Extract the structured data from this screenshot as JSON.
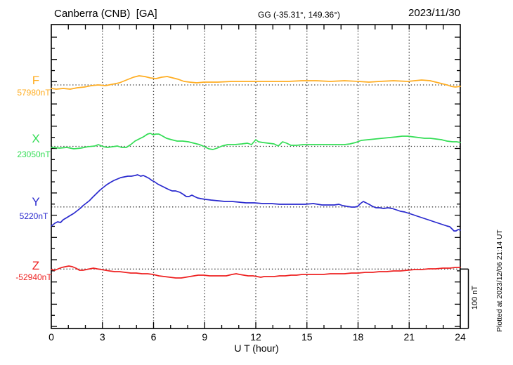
{
  "header": {
    "station_title": "Canberra (CNB)  [GA]",
    "coordinates": "GG (-35.31°, 149.36°)",
    "date": "2023/11/30"
  },
  "right_side": {
    "plotted_note": "Plotted at 2023/12/06 21:14 UT"
  },
  "chart_data": {
    "type": "line",
    "x_axis": {
      "label": "U T (hour)",
      "range": [
        0,
        24
      ],
      "ticks": [
        0,
        3,
        6,
        9,
        12,
        15,
        18,
        21,
        24
      ],
      "minor_tick_step_hours": 1,
      "grid": "dotted vertical lines at each 3-hour tick"
    },
    "y_axis": {
      "grid": "dotted horizontal baseline per component",
      "units": "nT",
      "values_are": "offset in nT from each component baseline"
    },
    "scale_bar": {
      "label": "100 nT",
      "nT": 100
    },
    "series": [
      {
        "name": "F",
        "baseline_label": "57980nT",
        "baseline_nT": 57980,
        "color": "#FFAD21",
        "points": [
          [
            0,
            -5.9
          ],
          [
            0.29,
            -7.1
          ],
          [
            0.7,
            -5.9
          ],
          [
            1.11,
            -7.1
          ],
          [
            1.53,
            -4.7
          ],
          [
            1.94,
            -3.5
          ],
          [
            2.35,
            -1.2
          ],
          [
            2.76,
            0
          ],
          [
            3.18,
            -1.2
          ],
          [
            3.59,
            1.2
          ],
          [
            4,
            3.5
          ],
          [
            4.41,
            8.2
          ],
          [
            4.82,
            12.9
          ],
          [
            5.15,
            15.3
          ],
          [
            5.48,
            14.1
          ],
          [
            5.81,
            11.8
          ],
          [
            6.14,
            10.6
          ],
          [
            6.47,
            12.9
          ],
          [
            6.8,
            14.1
          ],
          [
            7.13,
            11.8
          ],
          [
            7.46,
            9.4
          ],
          [
            7.79,
            5.9
          ],
          [
            8.12,
            4.7
          ],
          [
            8.54,
            3.5
          ],
          [
            8.95,
            4.7
          ],
          [
            9.77,
            4.7
          ],
          [
            10.6,
            5.9
          ],
          [
            11.42,
            5.9
          ],
          [
            12.25,
            5.9
          ],
          [
            13.07,
            5.9
          ],
          [
            13.9,
            5.9
          ],
          [
            14.72,
            7.1
          ],
          [
            15.55,
            7.1
          ],
          [
            16.37,
            5.9
          ],
          [
            17.2,
            7.1
          ],
          [
            18.02,
            5.9
          ],
          [
            18.64,
            4.7
          ],
          [
            19.26,
            5.9
          ],
          [
            20.08,
            7.1
          ],
          [
            20.91,
            5.9
          ],
          [
            21.73,
            8.2
          ],
          [
            22.23,
            7.1
          ],
          [
            22.56,
            4.7
          ],
          [
            22.89,
            2.4
          ],
          [
            23.22,
            0
          ],
          [
            23.46,
            -2.4
          ],
          [
            23.71,
            -3.5
          ],
          [
            24,
            -2.4
          ]
        ]
      },
      {
        "name": "X",
        "baseline_label": "23050nT",
        "baseline_nT": 23050,
        "color": "#33DD55",
        "points": [
          [
            0,
            -1.8
          ],
          [
            0.49,
            -2.9
          ],
          [
            0.91,
            -1.8
          ],
          [
            1.32,
            -4.1
          ],
          [
            1.73,
            -2.9
          ],
          [
            2.14,
            -0.6
          ],
          [
            2.56,
            0.6
          ],
          [
            2.76,
            2.9
          ],
          [
            3.05,
            -0.6
          ],
          [
            3.3,
            -1.8
          ],
          [
            3.59,
            -0.6
          ],
          [
            3.88,
            0.6
          ],
          [
            4.12,
            -1.8
          ],
          [
            4.41,
            -1.8
          ],
          [
            4.66,
            2.9
          ],
          [
            4.91,
            8.8
          ],
          [
            5.15,
            12.4
          ],
          [
            5.4,
            15.9
          ],
          [
            5.65,
            20.6
          ],
          [
            5.81,
            21.8
          ],
          [
            5.98,
            19.4
          ],
          [
            6.14,
            20.6
          ],
          [
            6.31,
            20.6
          ],
          [
            6.47,
            18.2
          ],
          [
            6.76,
            13.5
          ],
          [
            7.05,
            11.2
          ],
          [
            7.38,
            8.8
          ],
          [
            7.71,
            8.8
          ],
          [
            8.04,
            7.6
          ],
          [
            8.37,
            5.3
          ],
          [
            8.7,
            2.9
          ],
          [
            8.99,
            -0.6
          ],
          [
            9.24,
            -4.1
          ],
          [
            9.48,
            -5.3
          ],
          [
            9.73,
            -2.9
          ],
          [
            10.02,
            0.6
          ],
          [
            10.35,
            2.9
          ],
          [
            10.76,
            2.9
          ],
          [
            11.18,
            4.1
          ],
          [
            11.51,
            5.3
          ],
          [
            11.75,
            2.9
          ],
          [
            12,
            11.2
          ],
          [
            12.16,
            7.6
          ],
          [
            12.41,
            6.5
          ],
          [
            12.74,
            5.3
          ],
          [
            13.07,
            4.1
          ],
          [
            13.32,
            0.6
          ],
          [
            13.57,
            7.6
          ],
          [
            13.81,
            5.3
          ],
          [
            14.06,
            1.8
          ],
          [
            14.39,
            1.8
          ],
          [
            14.8,
            2.9
          ],
          [
            15.3,
            2.9
          ],
          [
            15.79,
            2.9
          ],
          [
            16.29,
            2.9
          ],
          [
            16.78,
            2.9
          ],
          [
            17.2,
            2.9
          ],
          [
            17.53,
            4.1
          ],
          [
            17.86,
            6.5
          ],
          [
            18.19,
            10
          ],
          [
            18.6,
            11.2
          ],
          [
            19.01,
            12.4
          ],
          [
            19.42,
            13.5
          ],
          [
            19.84,
            14.7
          ],
          [
            20.25,
            15.9
          ],
          [
            20.58,
            17.1
          ],
          [
            20.91,
            17.1
          ],
          [
            21.24,
            15.9
          ],
          [
            21.57,
            14.7
          ],
          [
            21.9,
            13.5
          ],
          [
            22.23,
            13.5
          ],
          [
            22.56,
            12.4
          ],
          [
            22.89,
            11.2
          ],
          [
            23.22,
            8.8
          ],
          [
            23.55,
            7.6
          ],
          [
            23.79,
            7.6
          ],
          [
            24,
            6.5
          ]
        ]
      },
      {
        "name": "Y",
        "baseline_label": "5220nT",
        "baseline_nT": 5220,
        "color": "#2929CE",
        "points": [
          [
            0,
            -32
          ],
          [
            0.21,
            -27.3
          ],
          [
            0.37,
            -24.9
          ],
          [
            0.54,
            -26.1
          ],
          [
            0.7,
            -21.4
          ],
          [
            0.91,
            -17.9
          ],
          [
            1.11,
            -14.4
          ],
          [
            1.32,
            -10.8
          ],
          [
            1.53,
            -6.1
          ],
          [
            1.69,
            -2.6
          ],
          [
            1.86,
            2.1
          ],
          [
            2.02,
            5.6
          ],
          [
            2.23,
            10.4
          ],
          [
            2.43,
            16.2
          ],
          [
            2.64,
            22.1
          ],
          [
            2.85,
            28
          ],
          [
            3.05,
            32.7
          ],
          [
            3.26,
            37.4
          ],
          [
            3.46,
            40.9
          ],
          [
            3.67,
            44.4
          ],
          [
            3.88,
            46.8
          ],
          [
            4.08,
            49.2
          ],
          [
            4.29,
            50.3
          ],
          [
            4.49,
            51.5
          ],
          [
            4.7,
            51.5
          ],
          [
            4.91,
            52.7
          ],
          [
            5.07,
            53.9
          ],
          [
            5.24,
            51.5
          ],
          [
            5.4,
            52.7
          ],
          [
            5.57,
            50.3
          ],
          [
            5.73,
            48
          ],
          [
            5.9,
            44.4
          ],
          [
            6.06,
            42.1
          ],
          [
            6.23,
            38.6
          ],
          [
            6.39,
            36.2
          ],
          [
            6.56,
            33.9
          ],
          [
            6.72,
            31.5
          ],
          [
            6.89,
            29.2
          ],
          [
            7.09,
            26.8
          ],
          [
            7.3,
            26.8
          ],
          [
            7.55,
            24.5
          ],
          [
            7.75,
            20.9
          ],
          [
            7.92,
            17.4
          ],
          [
            8.08,
            17.4
          ],
          [
            8.25,
            19.8
          ],
          [
            8.41,
            17.4
          ],
          [
            8.58,
            15.1
          ],
          [
            8.78,
            13.9
          ],
          [
            9.03,
            12.7
          ],
          [
            9.36,
            11.5
          ],
          [
            9.77,
            10.4
          ],
          [
            10.19,
            9.2
          ],
          [
            10.6,
            9.2
          ],
          [
            11.01,
            8
          ],
          [
            11.42,
            6.8
          ],
          [
            11.92,
            6.8
          ],
          [
            12.41,
            5.6
          ],
          [
            12.91,
            5.6
          ],
          [
            13.4,
            4.5
          ],
          [
            13.9,
            4.5
          ],
          [
            14.39,
            4.5
          ],
          [
            14.89,
            4.5
          ],
          [
            15.38,
            5.6
          ],
          [
            15.63,
            4.5
          ],
          [
            15.88,
            3.3
          ],
          [
            16.12,
            3.3
          ],
          [
            16.37,
            3.3
          ],
          [
            16.62,
            3.3
          ],
          [
            16.87,
            4.5
          ],
          [
            17.11,
            2.1
          ],
          [
            17.36,
            0.9
          ],
          [
            17.61,
            -0.2
          ],
          [
            17.81,
            -0.2
          ],
          [
            17.98,
            0.9
          ],
          [
            18.14,
            5.6
          ],
          [
            18.31,
            9.2
          ],
          [
            18.47,
            6.8
          ],
          [
            18.64,
            4.5
          ],
          [
            18.85,
            0.9
          ],
          [
            19.05,
            -1.4
          ],
          [
            19.26,
            -1.4
          ],
          [
            19.51,
            -2.6
          ],
          [
            19.75,
            -1.4
          ],
          [
            20,
            -2.6
          ],
          [
            20.25,
            -4.9
          ],
          [
            20.49,
            -7.3
          ],
          [
            20.74,
            -8.5
          ],
          [
            20.99,
            -10.8
          ],
          [
            21.24,
            -13.2
          ],
          [
            21.48,
            -15.5
          ],
          [
            21.73,
            -17.9
          ],
          [
            21.98,
            -20.2
          ],
          [
            22.23,
            -22.6
          ],
          [
            22.47,
            -24.9
          ],
          [
            22.72,
            -27.3
          ],
          [
            22.97,
            -29.6
          ],
          [
            23.22,
            -32
          ],
          [
            23.38,
            -33.2
          ],
          [
            23.51,
            -36.7
          ],
          [
            23.63,
            -40.2
          ],
          [
            23.75,
            -40.2
          ],
          [
            23.88,
            -37.9
          ],
          [
            24,
            -39
          ]
        ]
      },
      {
        "name": "Z",
        "baseline_label": "-52940nT",
        "baseline_nT": -52940,
        "color": "#EE2222",
        "points": [
          [
            0,
            -0.8
          ],
          [
            0.21,
            -2
          ],
          [
            0.41,
            0.4
          ],
          [
            0.62,
            2.7
          ],
          [
            0.82,
            3.9
          ],
          [
            1.03,
            5.1
          ],
          [
            1.24,
            3.9
          ],
          [
            1.44,
            1.5
          ],
          [
            1.65,
            -2
          ],
          [
            1.86,
            -2
          ],
          [
            2.06,
            -0.8
          ],
          [
            2.27,
            0.4
          ],
          [
            2.47,
            1.5
          ],
          [
            2.68,
            0.4
          ],
          [
            2.93,
            -0.8
          ],
          [
            3.18,
            -2
          ],
          [
            3.42,
            -3.2
          ],
          [
            3.71,
            -4.4
          ],
          [
            4,
            -4.4
          ],
          [
            4.33,
            -5.5
          ],
          [
            4.66,
            -6.7
          ],
          [
            4.99,
            -6.7
          ],
          [
            5.32,
            -7.9
          ],
          [
            5.65,
            -7.9
          ],
          [
            5.98,
            -9.1
          ],
          [
            6.31,
            -11.4
          ],
          [
            6.64,
            -12.6
          ],
          [
            6.97,
            -13.8
          ],
          [
            7.3,
            -14.9
          ],
          [
            7.63,
            -14.9
          ],
          [
            7.88,
            -13.8
          ],
          [
            8.12,
            -12.6
          ],
          [
            8.37,
            -11.4
          ],
          [
            8.62,
            -10.2
          ],
          [
            8.95,
            -10.2
          ],
          [
            9.28,
            -11.4
          ],
          [
            9.61,
            -11.4
          ],
          [
            9.94,
            -11.4
          ],
          [
            10.27,
            -11.4
          ],
          [
            10.6,
            -9.1
          ],
          [
            10.85,
            -7.9
          ],
          [
            11.05,
            -9.1
          ],
          [
            11.3,
            -10.2
          ],
          [
            11.55,
            -11.4
          ],
          [
            11.84,
            -11.4
          ],
          [
            12.08,
            -12.6
          ],
          [
            12.29,
            -13.8
          ],
          [
            12.49,
            -12.6
          ],
          [
            12.74,
            -12.6
          ],
          [
            13.07,
            -12.6
          ],
          [
            13.4,
            -11.4
          ],
          [
            13.73,
            -11.4
          ],
          [
            14.06,
            -10.2
          ],
          [
            14.39,
            -10.2
          ],
          [
            14.72,
            -9.1
          ],
          [
            15.13,
            -9.1
          ],
          [
            15.55,
            -9.1
          ],
          [
            15.96,
            -9.1
          ],
          [
            16.37,
            -7.9
          ],
          [
            16.78,
            -7.9
          ],
          [
            17.2,
            -7.9
          ],
          [
            17.61,
            -6.7
          ],
          [
            18.02,
            -6.7
          ],
          [
            18.43,
            -5.5
          ],
          [
            18.85,
            -5.5
          ],
          [
            19.26,
            -4.4
          ],
          [
            19.67,
            -4.4
          ],
          [
            20.08,
            -3.2
          ],
          [
            20.49,
            -3.2
          ],
          [
            20.91,
            -2
          ],
          [
            21.32,
            -0.8
          ],
          [
            21.73,
            -0.8
          ],
          [
            22.14,
            0.4
          ],
          [
            22.56,
            0.4
          ],
          [
            22.97,
            1.5
          ],
          [
            23.38,
            1.5
          ],
          [
            23.71,
            2.7
          ],
          [
            24,
            2.7
          ]
        ]
      }
    ]
  }
}
